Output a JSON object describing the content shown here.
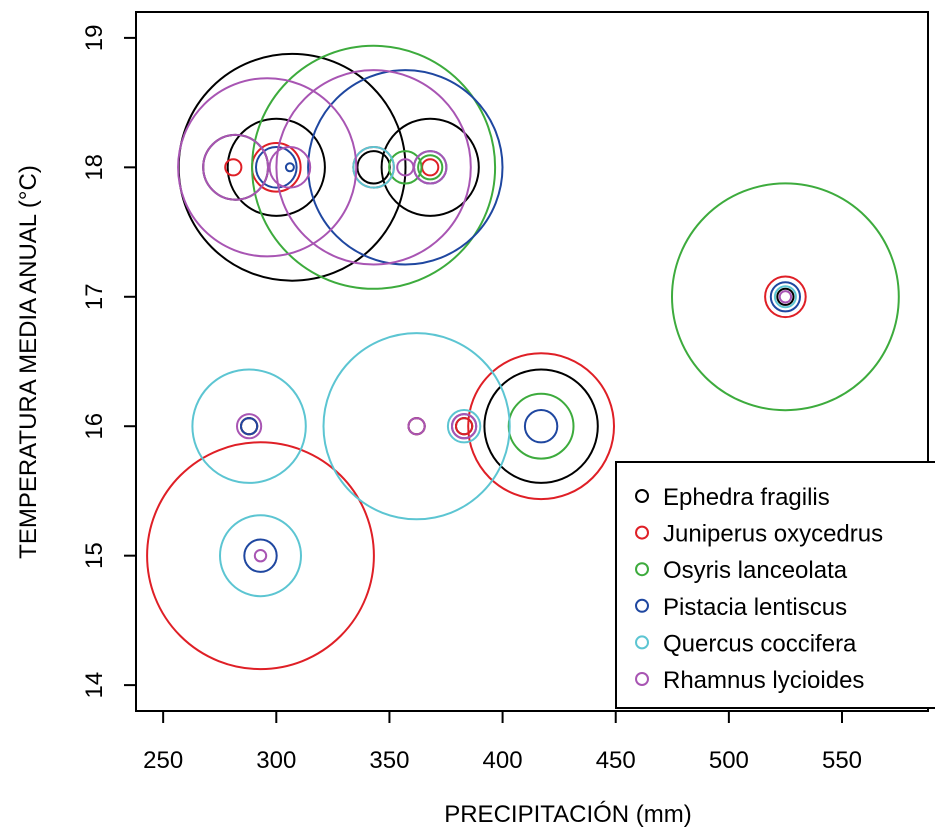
{
  "chart_data": {
    "type": "scatter",
    "title": "",
    "xlabel": "PRECIPITACIÓN (mm)",
    "ylabel": "TEMPERATURA MEDIA ANUAL (°C)",
    "xlim": [
      238,
      588
    ],
    "ylim": [
      13.8,
      19.2
    ],
    "xticks": [
      250,
      300,
      350,
      400,
      450,
      500,
      550
    ],
    "yticks": [
      14,
      15,
      16,
      17,
      18,
      19
    ],
    "legend_position": "bottom-right",
    "grid": false,
    "size_encoding": "circle radius (unlabeled)",
    "series": [
      {
        "name": "Ephedra fragilis",
        "color": "#000000",
        "points": [
          {
            "x": 282,
            "y": 18,
            "r": 4
          },
          {
            "x": 300,
            "y": 18,
            "r": 6
          },
          {
            "x": 307,
            "y": 18,
            "r": 14
          },
          {
            "x": 343,
            "y": 18,
            "r": 2
          },
          {
            "x": 368,
            "y": 18,
            "r": 6
          },
          {
            "x": 288,
            "y": 16,
            "r": 1
          },
          {
            "x": 362,
            "y": 16,
            "r": 1
          },
          {
            "x": 383,
            "y": 16,
            "r": 1
          },
          {
            "x": 417,
            "y": 16,
            "r": 7
          },
          {
            "x": 525,
            "y": 17,
            "r": 1
          }
        ]
      },
      {
        "name": "Juniperus oxycedrus",
        "color": "#DF1F26",
        "points": [
          {
            "x": 281,
            "y": 18,
            "r": 1
          },
          {
            "x": 300,
            "y": 18,
            "r": 3
          },
          {
            "x": 343,
            "y": 18,
            "r": 2.5
          },
          {
            "x": 368,
            "y": 18,
            "r": 1
          },
          {
            "x": 288,
            "y": 16,
            "r": 1
          },
          {
            "x": 362,
            "y": 16,
            "r": 1
          },
          {
            "x": 383,
            "y": 16,
            "r": 1
          },
          {
            "x": 417,
            "y": 16,
            "r": 9
          },
          {
            "x": 525,
            "y": 17,
            "r": 2.5
          },
          {
            "x": 293,
            "y": 15,
            "r": 14
          }
        ]
      },
      {
        "name": "Osyris lanceolata",
        "color": "#3DAB3D",
        "points": [
          {
            "x": 343,
            "y": 18,
            "r": 15
          },
          {
            "x": 357,
            "y": 18,
            "r": 2
          },
          {
            "x": 368,
            "y": 18,
            "r": 1.5
          },
          {
            "x": 417,
            "y": 16,
            "r": 4
          },
          {
            "x": 525,
            "y": 17,
            "r": 14
          }
        ]
      },
      {
        "name": "Pistacia lentiscus",
        "color": "#1F47A0",
        "points": [
          {
            "x": 300,
            "y": 18,
            "r": 2.5
          },
          {
            "x": 306,
            "y": 18,
            "r": 0.3
          },
          {
            "x": 357,
            "y": 18,
            "r": 12
          },
          {
            "x": 368,
            "y": 18,
            "r": 2
          },
          {
            "x": 288,
            "y": 16,
            "r": 1
          },
          {
            "x": 383,
            "y": 16,
            "r": 1.5
          },
          {
            "x": 417,
            "y": 16,
            "r": 2
          },
          {
            "x": 525,
            "y": 17,
            "r": 1.8
          },
          {
            "x": 293,
            "y": 15,
            "r": 2
          }
        ]
      },
      {
        "name": "Quercus coccifera",
        "color": "#5CC5D2",
        "points": [
          {
            "x": 343,
            "y": 18,
            "r": 2.5
          },
          {
            "x": 368,
            "y": 18,
            "r": 2
          },
          {
            "x": 288,
            "y": 16,
            "r": 7
          },
          {
            "x": 362,
            "y": 16,
            "r": 11.5
          },
          {
            "x": 383,
            "y": 16,
            "r": 2
          },
          {
            "x": 525,
            "y": 17,
            "r": 1.3
          },
          {
            "x": 293,
            "y": 15,
            "r": 5
          }
        ]
      },
      {
        "name": "Rhamnus lycioides",
        "color": "#A855B3",
        "points": [
          {
            "x": 282,
            "y": 18,
            "r": 4
          },
          {
            "x": 296,
            "y": 18,
            "r": 11
          },
          {
            "x": 306,
            "y": 18,
            "r": 2.5
          },
          {
            "x": 343,
            "y": 18,
            "r": 12
          },
          {
            "x": 357,
            "y": 18,
            "r": 1
          },
          {
            "x": 368,
            "y": 18,
            "r": 2
          },
          {
            "x": 288,
            "y": 16,
            "r": 1.5
          },
          {
            "x": 362,
            "y": 16,
            "r": 1
          },
          {
            "x": 383,
            "y": 16,
            "r": 1.5
          },
          {
            "x": 525,
            "y": 17,
            "r": 0.7
          },
          {
            "x": 293,
            "y": 15,
            "r": 0.7
          }
        ]
      }
    ]
  }
}
